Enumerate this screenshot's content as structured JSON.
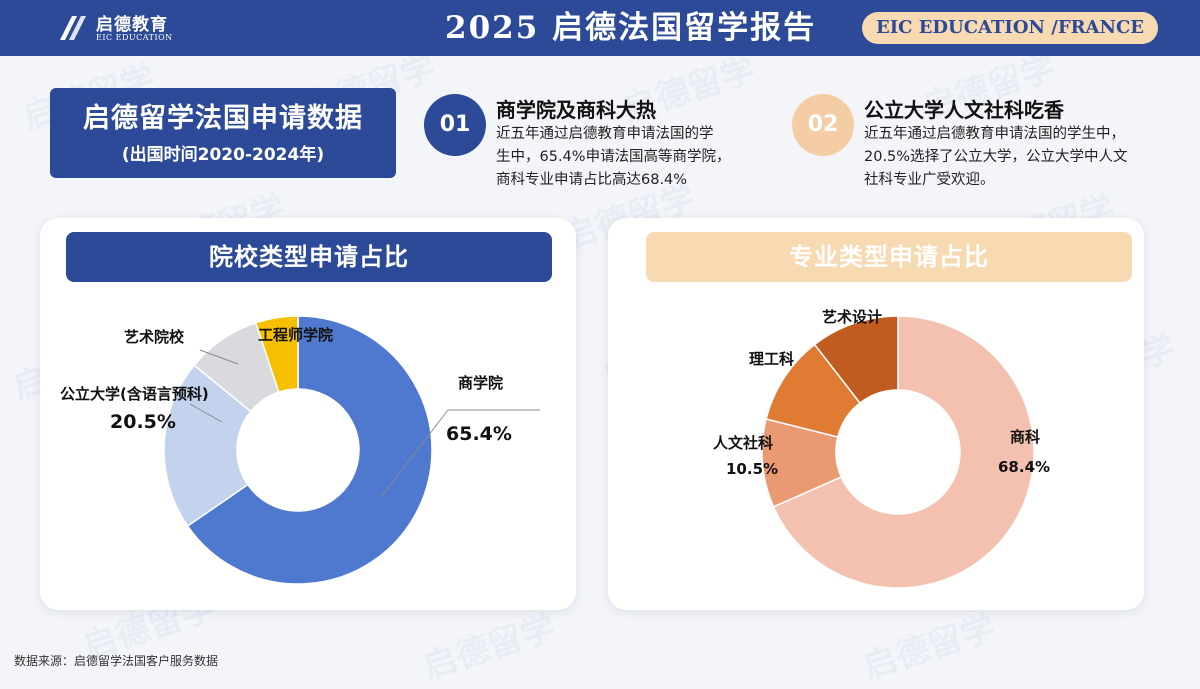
{
  "header": {
    "logo_cn": "启德教育",
    "logo_en": "EIC EDUCATION",
    "title": "2025 启德法国留学报告",
    "badge": "EIC EDUCATION /FRANCE"
  },
  "watermark_text": "启德留学",
  "intro": {
    "title": "启德留学法国申请数据",
    "subtitle": "(出国时间2020-2024年)"
  },
  "points": [
    {
      "num": "01",
      "title": "商学院及商科大热",
      "lines": [
        "近五年通过启德教育申请法国的学",
        "生中，65.4%申请法国高等商学院，",
        "商科专业申请占比高达68.4%"
      ],
      "color": "#2c4a97"
    },
    {
      "num": "02",
      "title": "公立大学人文社科吃香",
      "lines": [
        "近五年通过启德教育申请法国的学生中，",
        "20.5%选择了公立大学，公立大学中人文",
        "社科专业广受欢迎。"
      ],
      "color": "#f5cda4"
    }
  ],
  "panels": {
    "left_title": "院校类型申请占比",
    "right_title": "专业类型申请占比",
    "left_header_color": "#2c4a97",
    "right_header_color": "#f7d9b2"
  },
  "chart_data": [
    {
      "type": "pie",
      "title": "院校类型申请占比",
      "categories": [
        "商学院",
        "公立大学(含语言预科)",
        "艺术院校",
        "工程师学院"
      ],
      "values": [
        65.4,
        20.5,
        9.0,
        5.1
      ],
      "colors": [
        "#4f79cf",
        "#c3d3ee",
        "#d9dadd",
        "#f6c000"
      ],
      "data_labels": [
        "65.4%",
        "20.5%",
        "",
        ""
      ]
    },
    {
      "type": "pie",
      "title": "专业类型申请占比",
      "categories": [
        "商科",
        "人文社科",
        "理工科",
        "艺术设计"
      ],
      "values": [
        68.4,
        10.5,
        10.6,
        10.5
      ],
      "colors": [
        "#f4c1b0",
        "#e99a72",
        "#e07b34",
        "#c05c1f"
      ],
      "data_labels": [
        "68.4%",
        "10.5%",
        "",
        ""
      ]
    }
  ],
  "footnote": "数据来源：启德留学法国客户服务数据"
}
